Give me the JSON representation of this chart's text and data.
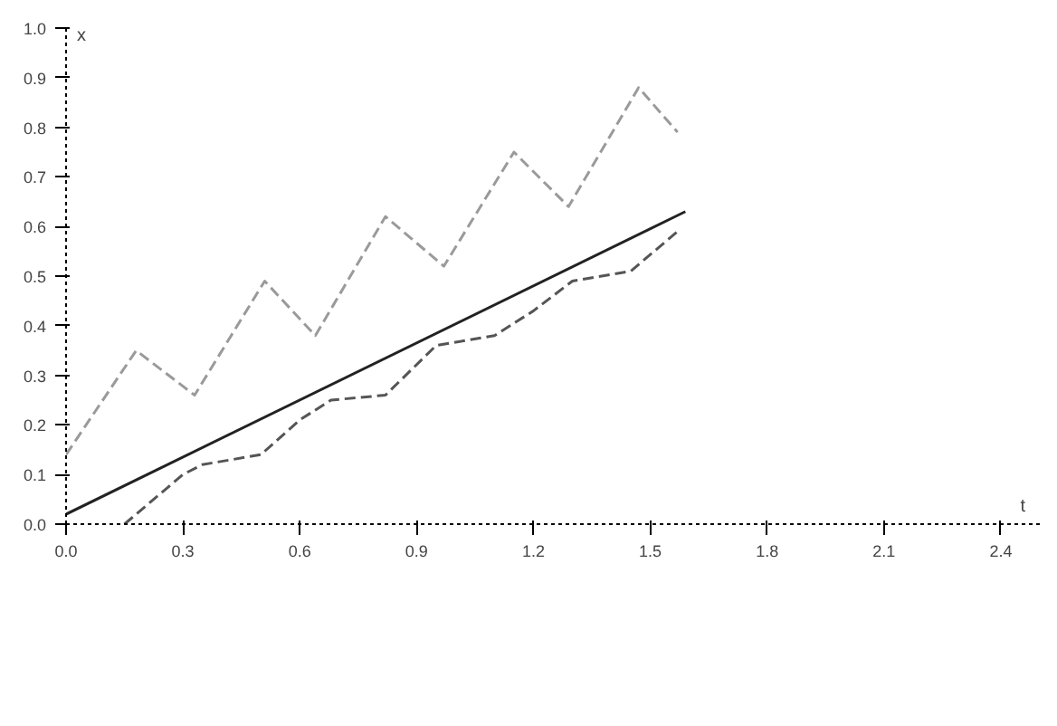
{
  "chart_data": {
    "type": "line",
    "xlabel": "t",
    "ylabel": "x",
    "xlim": [
      0,
      2.5
    ],
    "ylim": [
      0,
      1.0
    ],
    "xticks": [
      {
        "value": 0,
        "label": "0.0"
      },
      {
        "value": 0.3,
        "label": "0.3"
      },
      {
        "value": 0.6,
        "label": "0.6"
      },
      {
        "value": 0.9,
        "label": "0.9"
      },
      {
        "value": 1.2,
        "label": "1.2"
      },
      {
        "value": 1.5,
        "label": "1.5"
      },
      {
        "value": 1.8,
        "label": "1.8"
      },
      {
        "value": 2.1,
        "label": "2.1"
      },
      {
        "value": 2.4,
        "label": "2.4"
      }
    ],
    "yticks": [
      {
        "value": 0,
        "label": "0.0"
      },
      0.1,
      0.2,
      0.3,
      0.4,
      0.5,
      0.6,
      0.7,
      0.8,
      0.9,
      {
        "value": 1.0,
        "label": "1.0"
      }
    ],
    "grid": false,
    "series": [
      {
        "color": "#9a9a9a",
        "line_style": "dashed",
        "x": [
          0,
          0.18,
          0.33,
          0.51,
          0.64,
          0.82,
          0.97,
          1.15,
          1.29,
          1.47,
          1.57
        ],
        "values": [
          0.14,
          0.35,
          0.26,
          0.49,
          0.38,
          0.62,
          0.52,
          0.75,
          0.64,
          0.88,
          0.79
        ]
      },
      {
        "color": "#222222",
        "line_style": "solid",
        "x": [
          0,
          1.59
        ],
        "values": [
          0.02,
          0.63
        ]
      },
      {
        "color": "#555555",
        "line_style": "dashed",
        "x": [
          0.15,
          0.3,
          0.35,
          0.5,
          0.6,
          0.68,
          0.82,
          0.95,
          1.1,
          1.2,
          1.3,
          1.45,
          1.57
        ],
        "values": [
          0.0,
          0.1,
          0.12,
          0.14,
          0.21,
          0.25,
          0.26,
          0.36,
          0.38,
          0.43,
          0.49,
          0.51,
          0.59
        ]
      }
    ]
  }
}
